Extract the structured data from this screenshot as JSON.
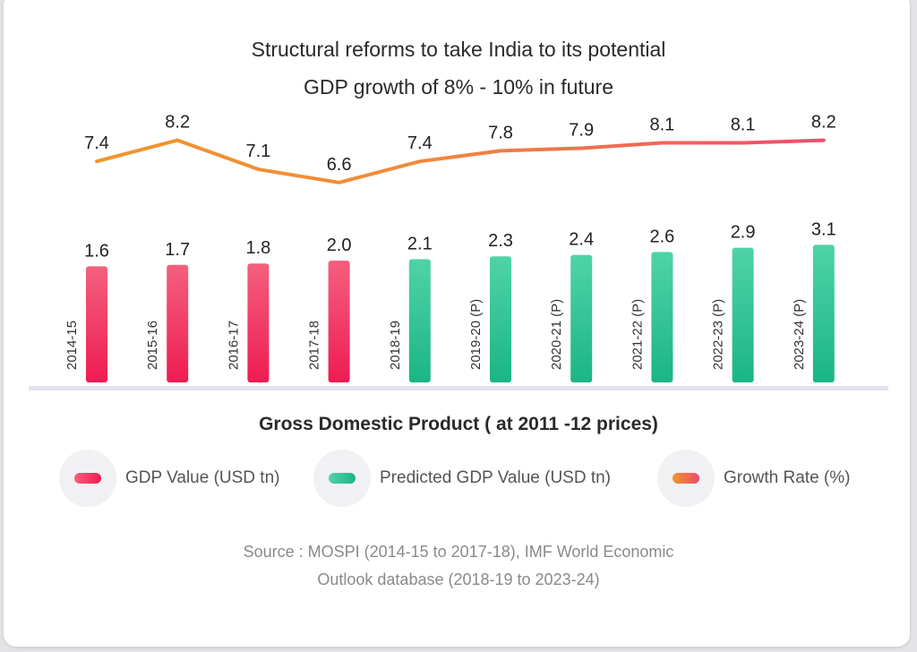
{
  "chart_data": {
    "type": "bar",
    "title_lines": [
      "Structural reforms to take India to its potential",
      "GDP growth of 8% - 10% in future"
    ],
    "categories": [
      "2014-15",
      "2015-16",
      "2016-17",
      "2017-18",
      "2018-19",
      "2019-20 (P)",
      "2020-21 (P)",
      "2021-22 (P)",
      "2022-23 (P)",
      "2023-24 (P)"
    ],
    "series": [
      {
        "name": "GDP Value (USD tn)",
        "type": "bar",
        "values": [
          1.6,
          1.7,
          1.8,
          2.0,
          null,
          null,
          null,
          null,
          null,
          null
        ]
      },
      {
        "name": "Predicted GDP Value (USD tn)",
        "type": "bar",
        "values": [
          null,
          null,
          null,
          null,
          2.1,
          2.3,
          2.4,
          2.6,
          2.9,
          3.1
        ]
      },
      {
        "name": "Growth Rate (%)",
        "type": "line",
        "values": [
          7.4,
          8.2,
          7.1,
          6.6,
          7.4,
          7.8,
          7.9,
          8.1,
          8.1,
          8.2
        ]
      }
    ],
    "bar_labels": [
      "1.6",
      "1.7",
      "1.8",
      "2.0",
      "2.1",
      "2.3",
      "2.4",
      "2.6",
      "2.9",
      "3.1"
    ],
    "line_labels": [
      "7.4",
      "8.2",
      "7.1",
      "6.6",
      "7.4",
      "7.8",
      "7.9",
      "8.1",
      "8.1",
      "8.2"
    ],
    "xlabel": "Gross Domestic Product ( at 2011 -12 prices)",
    "legend_position": "bottom",
    "grid": false
  },
  "colors": {
    "gdp": "#f0285d",
    "predicted": "#22c08f",
    "growth_start": "#f0962a",
    "growth_end": "#ee4a6e",
    "baseline": "#e4e2f0"
  },
  "legend": [
    {
      "label": "GDP Value (USD tn)",
      "key": "gdp"
    },
    {
      "label": "Predicted GDP Value (USD tn)",
      "key": "predicted"
    },
    {
      "label": "Growth Rate (%)",
      "key": "growth"
    }
  ],
  "source_lines": [
    "Source : MOSPI (2014-15 to 2017-18), IMF World Economic",
    "Outlook database (2018-19 to 2023-24)"
  ]
}
